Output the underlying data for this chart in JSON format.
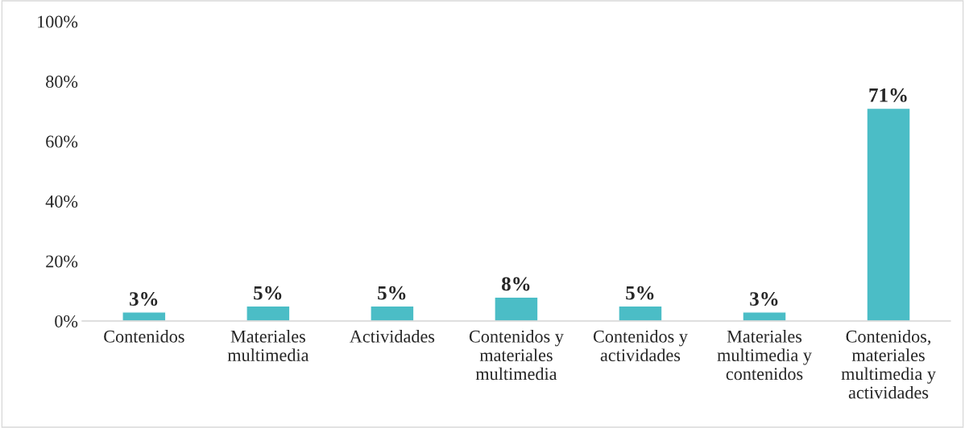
{
  "chart_data": {
    "type": "bar",
    "categories": [
      "Contenidos",
      "Materiales multimedia",
      "Actividades",
      "Contenidos y materiales multimedia",
      "Contenidos y actividades",
      "Materiales multimedia y contenidos",
      "Contenidos, materiales multimedia y actividades"
    ],
    "values": [
      3,
      5,
      5,
      8,
      5,
      3,
      71
    ],
    "value_labels": [
      "3%",
      "5%",
      "5%",
      "8%",
      "5%",
      "3%",
      "71%"
    ],
    "color": "#4bbdc6",
    "ylim": [
      0,
      100
    ],
    "yticks": [
      {
        "value": 0,
        "label": "0%"
      },
      {
        "value": 20,
        "label": "20%"
      },
      {
        "value": 40,
        "label": "40%"
      },
      {
        "value": 60,
        "label": "60%"
      },
      {
        "value": 80,
        "label": "80%"
      },
      {
        "value": 100,
        "label": "100%"
      }
    ],
    "grid": false,
    "legend": false
  }
}
